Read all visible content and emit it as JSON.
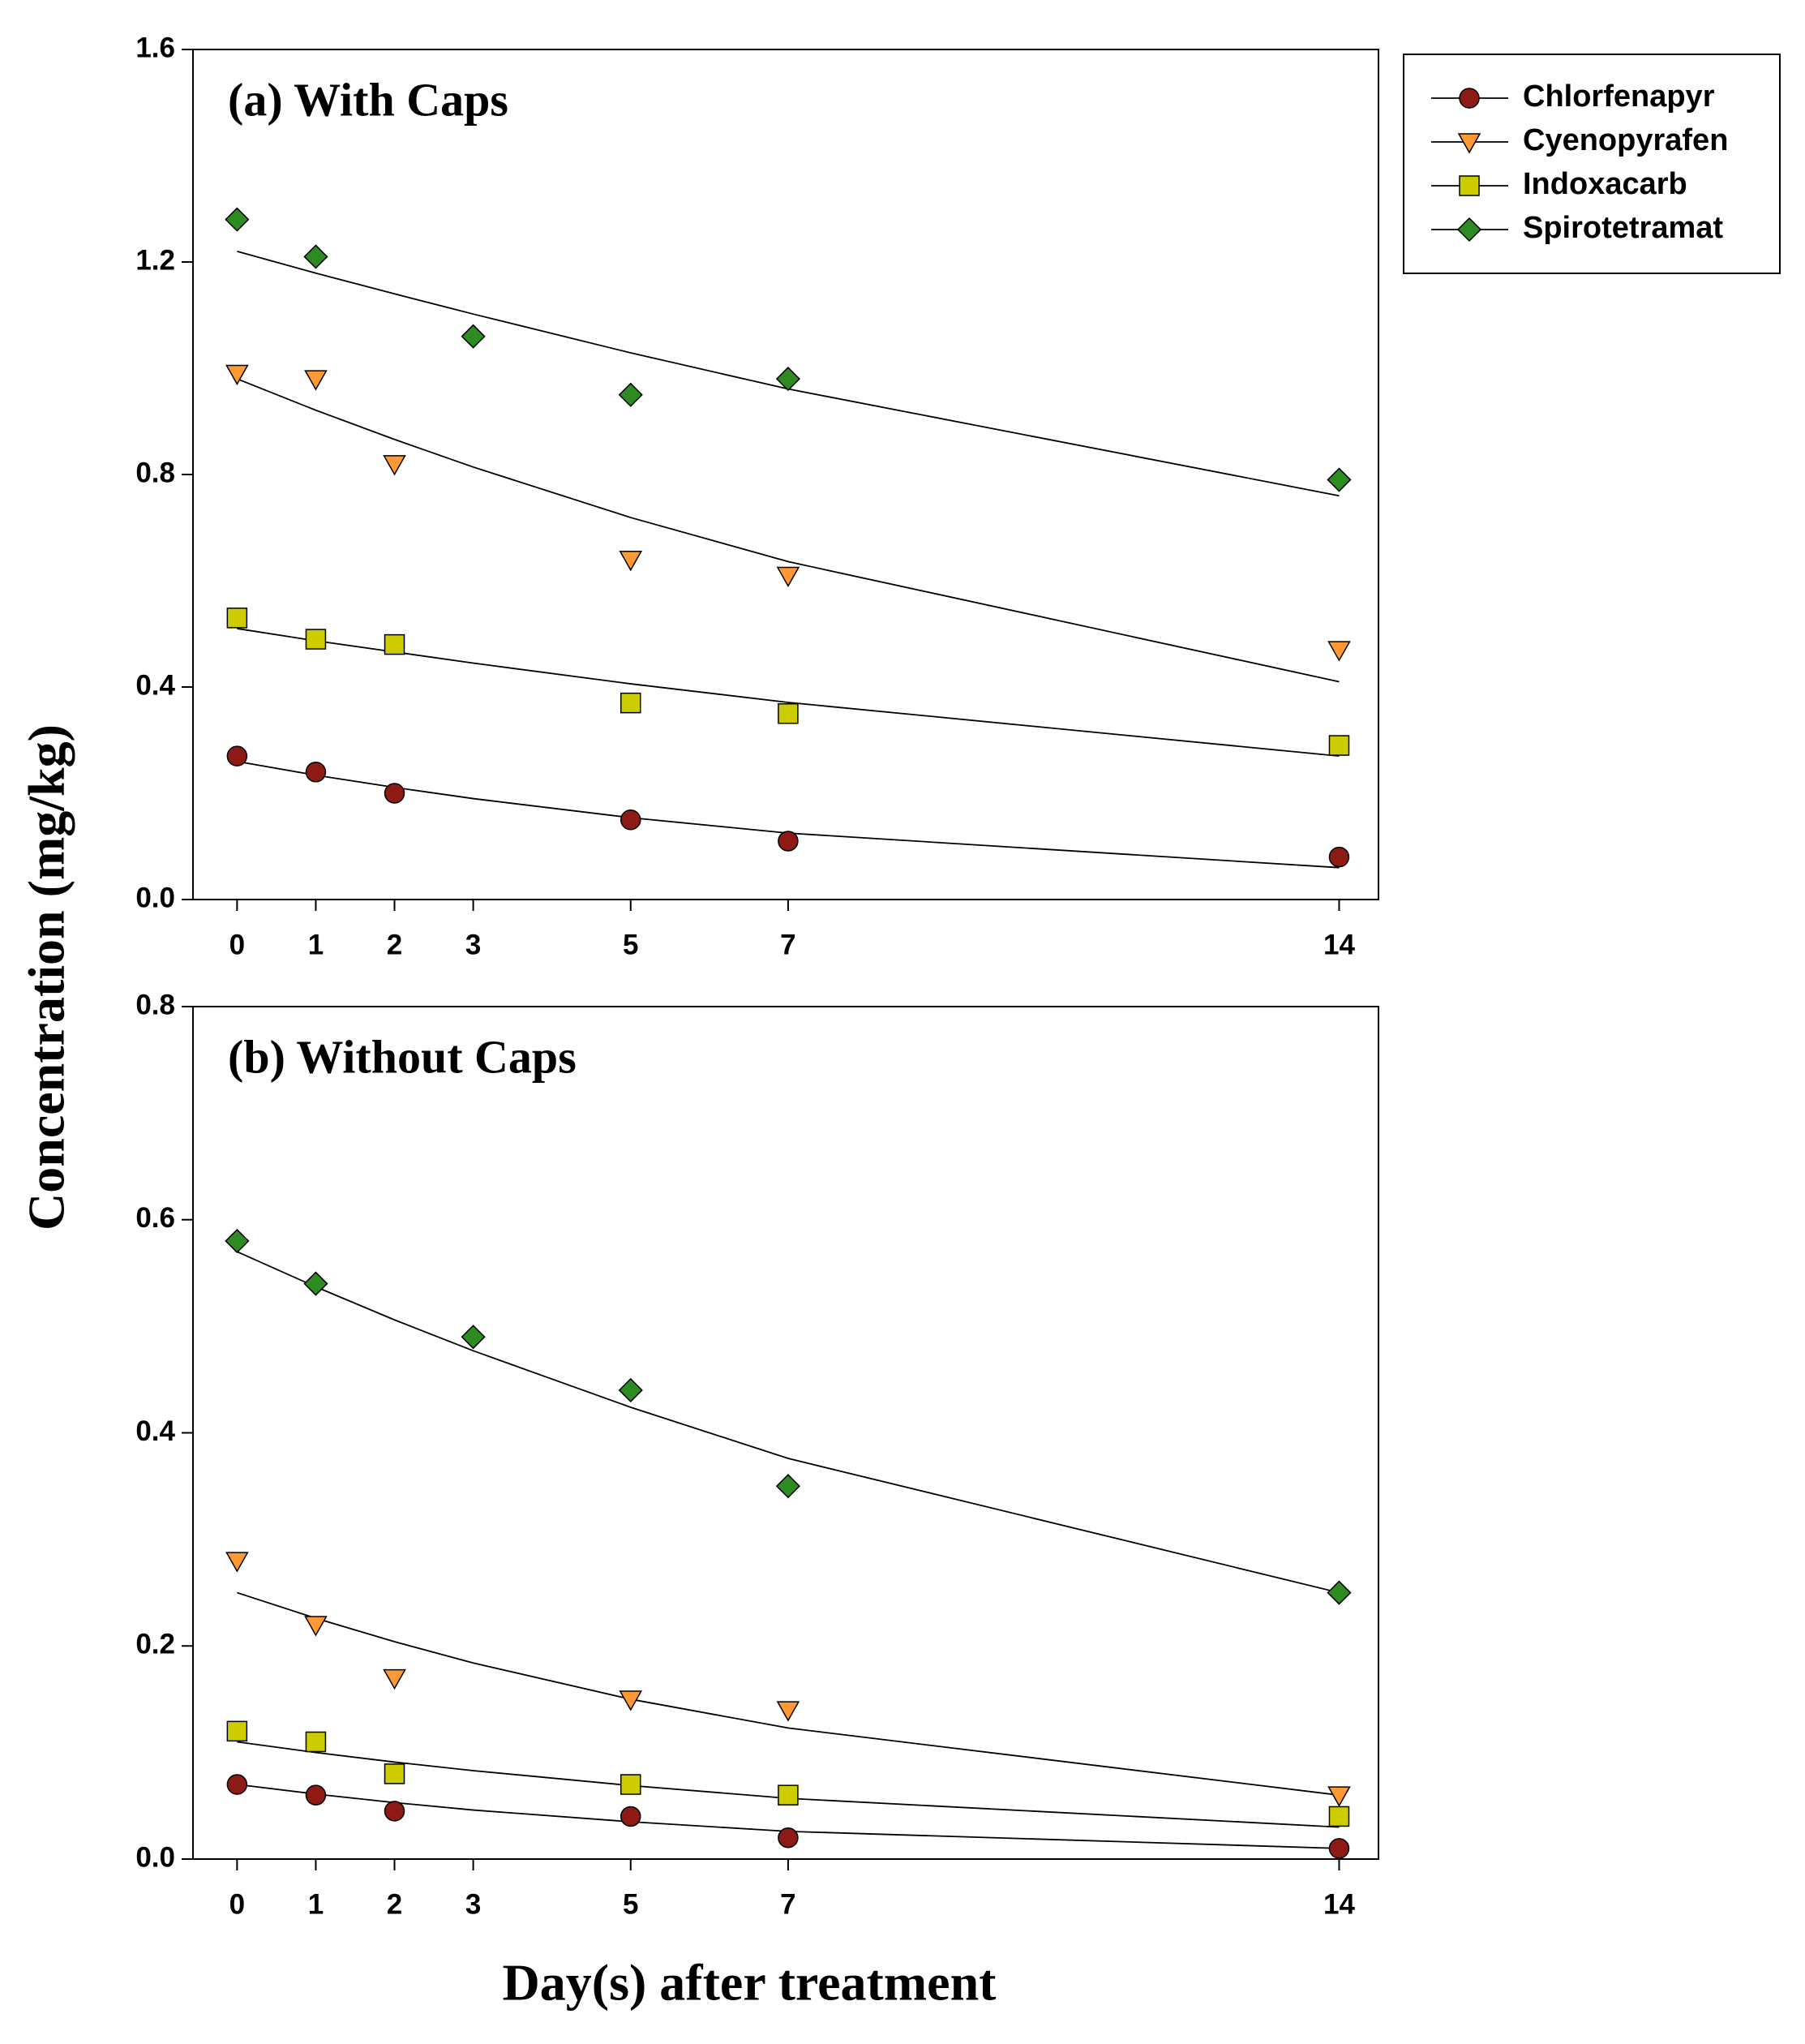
{
  "chart_data": [
    {
      "type": "scatter",
      "title": "(a) With Caps",
      "ylabel": "Concentration (mg/kg)",
      "legend": "right",
      "x": [
        0,
        1,
        2,
        3,
        5,
        7,
        14
      ],
      "xlim": [
        -0.56,
        14.5
      ],
      "xticks": [
        0,
        1,
        2,
        3,
        5,
        7,
        14
      ],
      "ylim": [
        0,
        1.6
      ],
      "yticks": [
        {
          "value": 0,
          "label": "0.0"
        },
        0.4,
        0.8,
        1.2,
        1.6
      ],
      "series": [
        {
          "name": "Chlorfenapyr",
          "color": "#8e1a16",
          "marker": "circle",
          "values": [
            0.27,
            0.24,
            0.2,
            null,
            0.15,
            0.11,
            0.08
          ],
          "fit": [
            0.26,
            0.234,
            0.211,
            0.19,
            0.154,
            0.125,
            0.06
          ]
        },
        {
          "name": "Cyenopyrafen",
          "color": "#ff9933",
          "marker": "triangle-down",
          "values": [
            0.99,
            0.98,
            0.82,
            null,
            0.64,
            0.61,
            0.47
          ],
          "fit": [
            0.98,
            0.921,
            0.866,
            0.814,
            0.719,
            0.636,
            0.41
          ]
        },
        {
          "name": "Indoxacarb",
          "color": "#cccc00",
          "marker": "square",
          "values": [
            0.53,
            0.49,
            0.48,
            null,
            0.37,
            0.35,
            0.29
          ],
          "fit": [
            0.51,
            0.487,
            0.466,
            0.445,
            0.406,
            0.371,
            0.27
          ]
        },
        {
          "name": "Spirotetramat",
          "color": "#2e8b22",
          "marker": "diamond",
          "values": [
            1.28,
            1.21,
            null,
            1.06,
            0.95,
            0.98,
            0.79
          ],
          "fit": [
            1.22,
            1.179,
            1.14,
            1.102,
            1.029,
            0.961,
            0.76
          ]
        }
      ]
    },
    {
      "type": "scatter",
      "title": "(b) Without Caps",
      "xlabel": "Day(s) after treatment",
      "x": [
        0,
        1,
        2,
        3,
        5,
        7,
        14
      ],
      "xlim": [
        -0.56,
        14.5
      ],
      "xticks": [
        0,
        1,
        2,
        3,
        5,
        7,
        14
      ],
      "ylim": [
        0,
        0.8
      ],
      "yticks": [
        {
          "value": 0,
          "label": "0.0"
        },
        0.2,
        0.4,
        0.6,
        0.8
      ],
      "series": [
        {
          "color": "#8e1a16",
          "marker": "circle",
          "values": [
            0.07,
            0.06,
            0.045,
            null,
            0.04,
            0.02,
            0.01
          ],
          "fit": [
            0.07,
            0.061,
            0.053,
            0.046,
            0.035,
            0.026,
            0.01
          ]
        },
        {
          "color": "#ff9933",
          "marker": "triangle-down",
          "values": [
            0.28,
            0.22,
            0.17,
            null,
            0.15,
            0.14,
            0.06
          ],
          "fit": [
            0.25,
            0.226,
            0.204,
            0.184,
            0.15,
            0.123,
            0.06
          ]
        },
        {
          "color": "#cccc00",
          "marker": "square",
          "values": [
            0.12,
            0.11,
            0.08,
            null,
            0.07,
            0.06,
            0.04
          ],
          "fit": [
            0.11,
            0.1,
            0.091,
            0.083,
            0.069,
            0.057,
            0.03
          ]
        },
        {
          "color": "#2e8b22",
          "marker": "diamond",
          "values": [
            0.58,
            0.54,
            null,
            0.49,
            0.44,
            0.35,
            0.25
          ],
          "fit": [
            0.57,
            0.537,
            0.506,
            0.477,
            0.424,
            0.376,
            0.25
          ]
        }
      ]
    }
  ]
}
